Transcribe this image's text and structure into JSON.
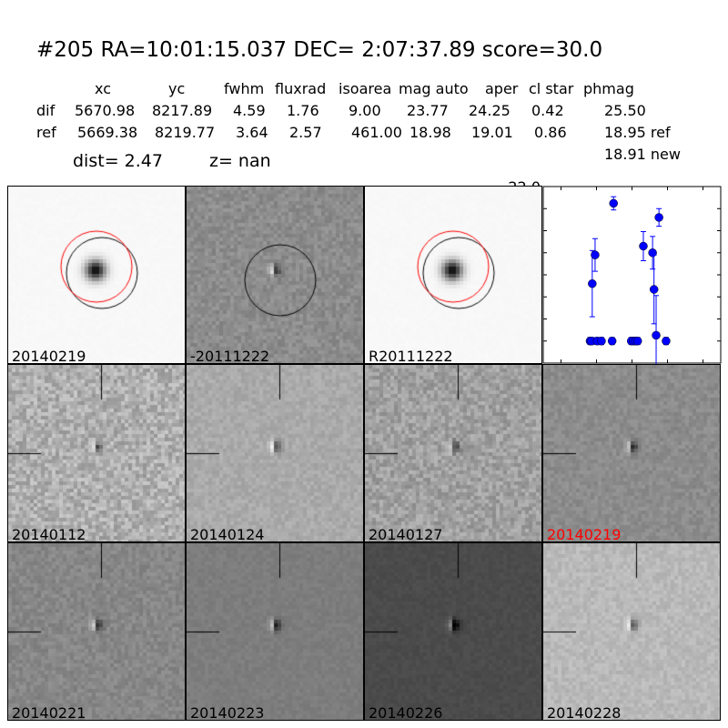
{
  "title": "#205   RA=10:01:15.037 DEC= 2:07:37.89      score=30.0",
  "table": {
    "headers": [
      "xc",
      "yc",
      "fwhm",
      "fluxrad",
      "isoarea",
      "mag auto",
      "aper",
      "cl star",
      "phmag"
    ],
    "rows": [
      {
        "label": "dif",
        "values": [
          "5670.98",
          "8217.89",
          "4.59",
          "1.76",
          "9.00",
          "23.77",
          "24.25",
          "0.42",
          "25.50"
        ]
      },
      {
        "label": "ref",
        "values": [
          "5669.38",
          "8219.77",
          "3.64",
          "2.57",
          "461.00",
          "18.98",
          "19.01",
          "0.86",
          "18.95 ref"
        ]
      }
    ],
    "extra": "18.91 new"
  },
  "dist": "dist=  2.47",
  "z": "z=   nan",
  "stamps": [
    {
      "label": "20140219",
      "kind": "new"
    },
    {
      "label": "-20111222",
      "kind": "diff"
    },
    {
      "label": "R20111222",
      "kind": "ref"
    },
    {
      "label": "20140112",
      "kind": "epoch"
    },
    {
      "label": "20140124",
      "kind": "epoch"
    },
    {
      "label": "20140127",
      "kind": "epoch"
    },
    {
      "label": "20140219",
      "kind": "epoch",
      "highlight": "#ff0000"
    },
    {
      "label": "20140221",
      "kind": "epoch"
    },
    {
      "label": "20140223",
      "kind": "epoch"
    },
    {
      "label": "20140226",
      "kind": "epoch"
    },
    {
      "label": "20140228",
      "kind": "epoch"
    }
  ],
  "chart_data": {
    "type": "scatter",
    "xlim": [
      -125,
      125
    ],
    "ylim": [
      26.0,
      22.0
    ],
    "y_inverted": true,
    "xticks": [
      "-100",
      "-50",
      "0",
      "50",
      "100"
    ],
    "yticks": [
      "22.0",
      "22.5",
      "23.0",
      "23.5",
      "24.0",
      "24.5",
      "25.0",
      "25.5",
      "26.0"
    ],
    "color": "#0000ff",
    "points": [
      {
        "x": -59,
        "y": 25.5,
        "err": 0.08
      },
      {
        "x": -57,
        "y": 25.5,
        "err": 0.08
      },
      {
        "x": -56,
        "y": 24.2,
        "err": 0.75
      },
      {
        "x": -52,
        "y": 23.55,
        "err": 0.37
      },
      {
        "x": -49,
        "y": 25.5,
        "err": 0.08
      },
      {
        "x": -43,
        "y": 25.5,
        "err": 0.08
      },
      {
        "x": -28,
        "y": 25.5,
        "err": 0.08
      },
      {
        "x": -26,
        "y": 22.38,
        "err": 0.15
      },
      {
        "x": -1,
        "y": 25.5,
        "err": 0.08
      },
      {
        "x": 2,
        "y": 25.5,
        "err": 0.08
      },
      {
        "x": 5,
        "y": 25.5,
        "err": 0.08
      },
      {
        "x": 8,
        "y": 25.5,
        "err": 0.08
      },
      {
        "x": 16,
        "y": 23.35,
        "err": 0.33
      },
      {
        "x": 29,
        "y": 23.5,
        "err": 0.37
      },
      {
        "x": 31,
        "y": 24.33,
        "err": 0.78
      },
      {
        "x": 34,
        "y": 25.37,
        "err": 0.9
      },
      {
        "x": 38,
        "y": 22.7,
        "err": 0.2
      },
      {
        "x": 48,
        "y": 25.5,
        "err": 0.08
      }
    ]
  }
}
